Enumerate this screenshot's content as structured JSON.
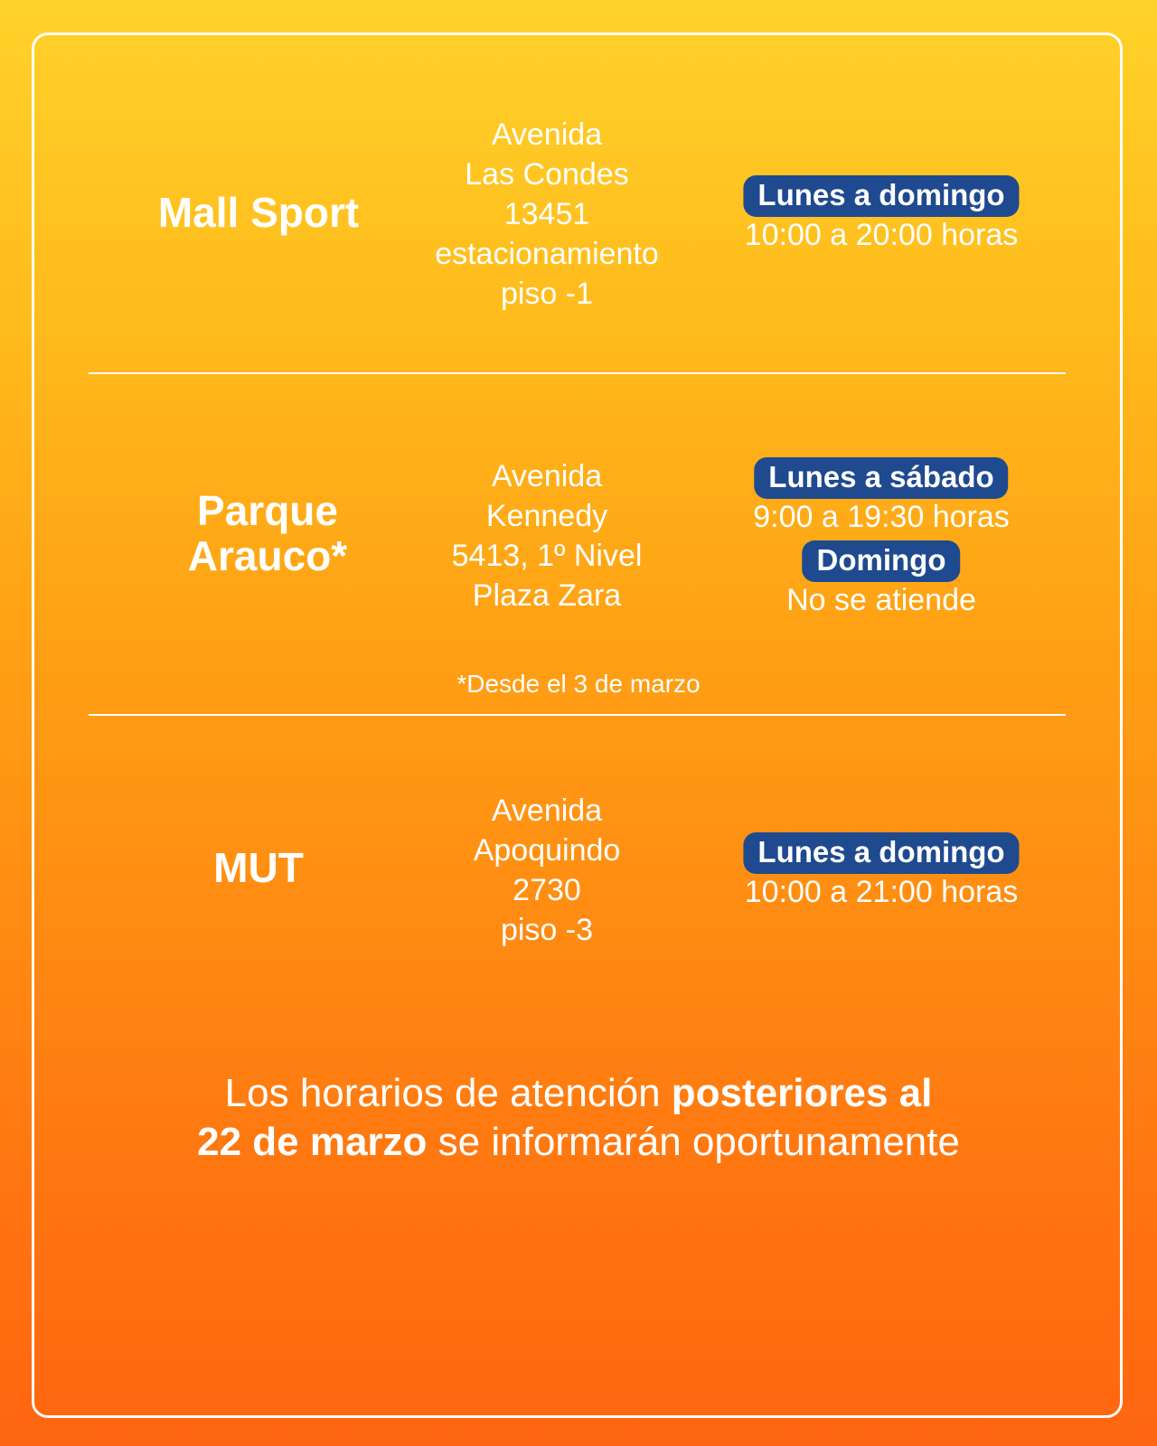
{
  "colors": {
    "badge": "#1f4a8f",
    "text": "#ffffff",
    "background_top": "#ffd22a",
    "background_bottom": "#ff6510"
  },
  "locations": [
    {
      "name": "Mall Sport",
      "address": [
        "Avenida",
        "Las Condes",
        "13451",
        "estacionamiento",
        "piso -1"
      ],
      "schedule": [
        {
          "days": "Lunes a domingo",
          "hours": "10:00 a 20:00 horas"
        }
      ]
    },
    {
      "name_lines": [
        "Parque",
        "Arauco*"
      ],
      "address": [
        "Avenida",
        "Kennedy",
        "5413, 1º Nivel",
        "Plaza Zara"
      ],
      "schedule": [
        {
          "days": "Lunes a sábado",
          "hours": "9:00 a 19:30 horas"
        },
        {
          "days": "Domingo",
          "hours": "No se atiende"
        }
      ],
      "note": "*Desde el 3 de marzo"
    },
    {
      "name": "MUT",
      "address": [
        "Avenida",
        "Apoquindo",
        "2730",
        "piso -3"
      ],
      "schedule": [
        {
          "days": "Lunes a domingo",
          "hours": "10:00 a 21:00 horas"
        }
      ]
    }
  ],
  "footer": {
    "part1": "Los horarios de atención ",
    "bold1": "posteriores al",
    "bold2": "22 de marzo",
    "part2": " se informarán oportunamente"
  }
}
